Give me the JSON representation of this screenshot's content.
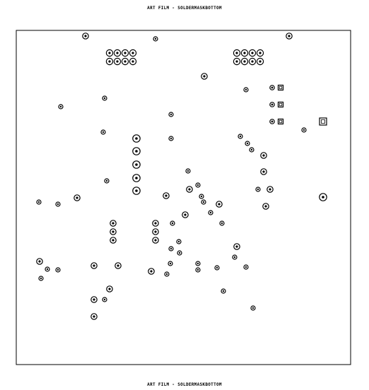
{
  "header": {
    "title": "ART FILM - SOLDERMASKBOTTOM"
  },
  "footer": {
    "title": "ART FILM - SOLDERMASKBOTTOM"
  },
  "colors": {
    "ink": "#000000",
    "background": "#ffffff"
  }
}
